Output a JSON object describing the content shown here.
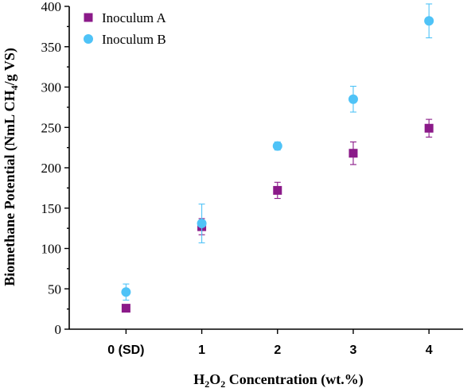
{
  "chart_data": {
    "type": "scatter",
    "categories": [
      "0 (SD)",
      "1",
      "2",
      "3",
      "4"
    ],
    "x": [
      0,
      1,
      2,
      3,
      4
    ],
    "ylim": [
      0,
      400
    ],
    "yticks": [
      0,
      50,
      100,
      150,
      200,
      250,
      300,
      350,
      400
    ],
    "xlabel": {
      "prefix": "H",
      "sub1": "2",
      "mid": "O",
      "sub2": "2",
      "suffix": " Concentration (wt.%)"
    },
    "ylabel": {
      "prefix": "Biomethane Potential (NmL CH",
      "sub": "4",
      "suffix": "/g VS)"
    },
    "legend_position": "top-left",
    "grid": false,
    "series": [
      {
        "name": "Inoculum A",
        "marker": "square",
        "color": "#8B1A89",
        "values": [
          26,
          127,
          172,
          218,
          249
        ],
        "errors": [
          3,
          10,
          10,
          14,
          11
        ]
      },
      {
        "name": "Inoculum B",
        "marker": "circle",
        "color": "#4FC3F7",
        "values": [
          46,
          131,
          227,
          285,
          382
        ],
        "errors": [
          10,
          24,
          5,
          16,
          21
        ]
      }
    ]
  }
}
